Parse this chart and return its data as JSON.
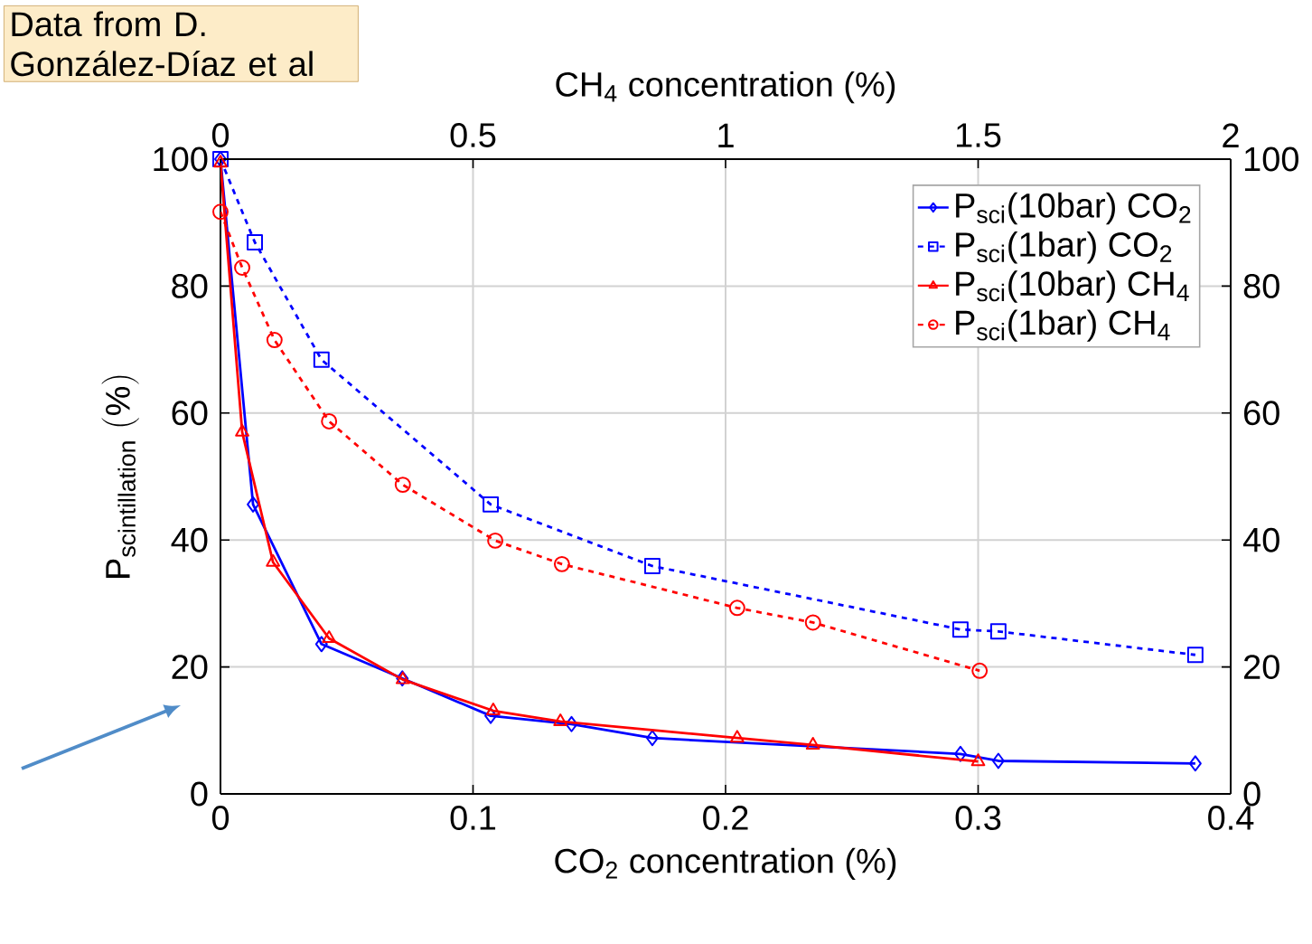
{
  "chart_data": {
    "type": "line",
    "xlabel": "CO$_{2}$ concentration (%)",
    "x2label": "CH$_{4}$ concentration (%)",
    "ylabel": "\\mathrm{P}_{\\mathrm{scintillation}}\\ \\mathrm{(\\%)}",
    "xlim": [
      0,
      0.4
    ],
    "xticks": [
      0,
      0.1,
      0.2,
      0.3,
      0.4
    ],
    "x2lim": [
      0,
      2
    ],
    "x2ticks": [
      0,
      0.5,
      1,
      1.5,
      2
    ],
    "ylim": [
      0,
      100
    ],
    "yticks": [
      0,
      20,
      40,
      60,
      80,
      100
    ],
    "y2lim": [
      0,
      100
    ],
    "y2ticks": [
      0,
      20,
      40,
      60,
      80,
      100
    ],
    "grid": true,
    "legend": "top right",
    "annotations": [
      "Data from D. González-Díaz et al"
    ],
    "series": [
      {
        "name": "P$_{sci}$(10bar) CO$_{2}$",
        "color": "#0000ff",
        "marker": "diamond",
        "line_style": "solid",
        "x": [
          0,
          0.0129,
          0.04,
          0.072,
          0.107,
          0.139,
          0.171,
          0.293,
          0.308,
          0.386
        ],
        "values": [
          100,
          45.6,
          23.6,
          18.2,
          12.3,
          11,
          8.8,
          6.3,
          5.2,
          4.8
        ]
      },
      {
        "name": "P$_{sci}$(1bar) CO$_{2}$",
        "color": "#0000ff",
        "marker": "square",
        "line_style": "dashed",
        "x": [
          0,
          0.0136,
          0.04,
          0.107,
          0.171,
          0.293,
          0.308,
          0.386
        ],
        "values": [
          100,
          86.9,
          68.4,
          45.6,
          35.9,
          25.9,
          25.6,
          21.9
        ]
      },
      {
        "name": "P$_{sci}$(10bar) CH$_{4}$",
        "color": "#ff0000",
        "marker": "triangle",
        "line_style": "solid",
        "axis": "x2",
        "x": [
          0,
          0.043,
          0.104,
          0.215,
          0.361,
          0.54,
          0.673,
          1.023,
          1.173,
          1.5
        ],
        "values": [
          99.4,
          57,
          36.5,
          24.5,
          18,
          13.1,
          11.4,
          8.8,
          7.7,
          5.1
        ]
      },
      {
        "name": "P$_{sci}$(1bar) CH$_{4}$",
        "color": "#ff0000",
        "marker": "circle",
        "line_style": "dashed",
        "axis": "x2",
        "x": [
          0,
          0.043,
          0.107,
          0.215,
          0.361,
          0.544,
          0.676,
          1.023,
          1.173,
          1.503
        ],
        "values": [
          91.7,
          82.9,
          71.5,
          58.7,
          48.7,
          39.9,
          36.2,
          29.3,
          27,
          19.4
        ]
      }
    ]
  }
}
